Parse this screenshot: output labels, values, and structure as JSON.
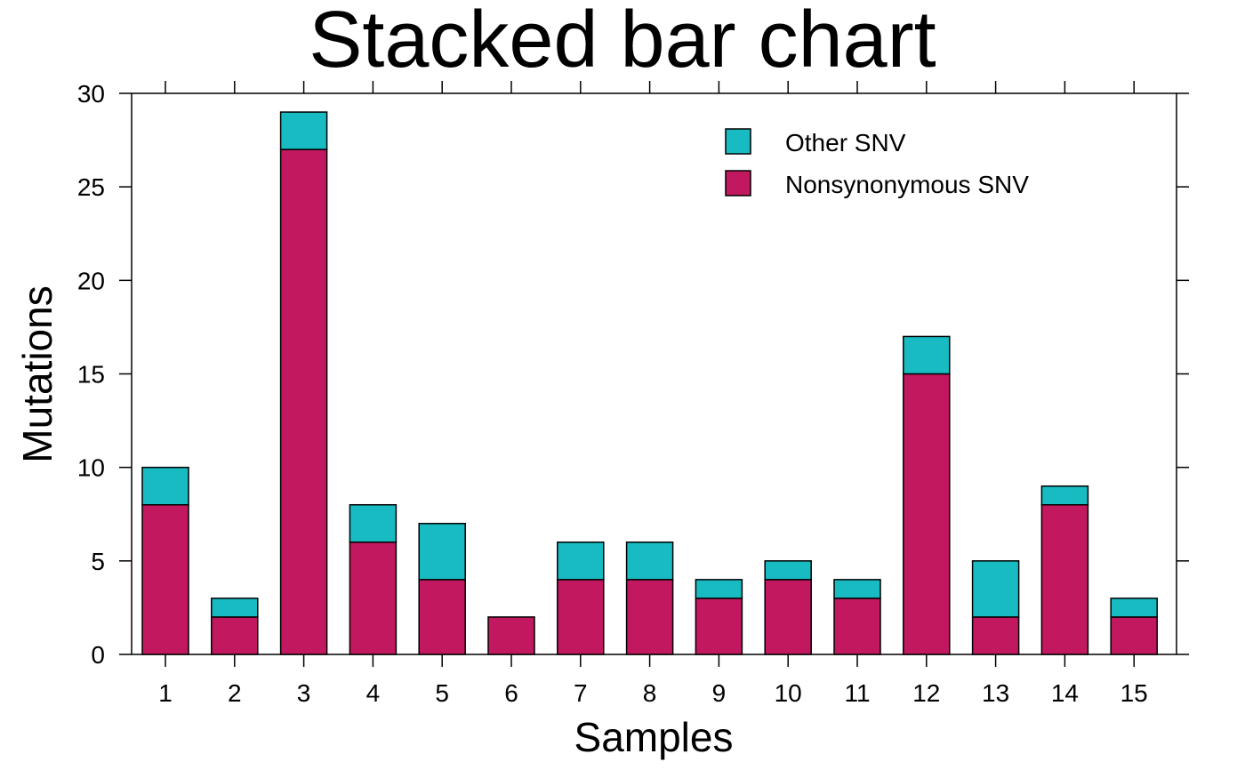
{
  "chart_data": {
    "type": "bar",
    "stacked": true,
    "title": "Stacked bar chart",
    "xlabel": "Samples",
    "ylabel": "Mutations",
    "ylim": [
      0,
      30
    ],
    "yticks": [
      0,
      5,
      10,
      15,
      20,
      25,
      30
    ],
    "categories": [
      "1",
      "2",
      "3",
      "4",
      "5",
      "6",
      "7",
      "8",
      "9",
      "10",
      "11",
      "12",
      "13",
      "14",
      "15"
    ],
    "series": [
      {
        "name": "Nonsynonymous SNV",
        "color": "#C2185F",
        "values": [
          8,
          2,
          27,
          6,
          4,
          2,
          4,
          4,
          3,
          4,
          3,
          15,
          2,
          8,
          2
        ]
      },
      {
        "name": "Other SNV",
        "color": "#19BBC3",
        "values": [
          2,
          1,
          2,
          2,
          3,
          0,
          2,
          2,
          1,
          1,
          1,
          2,
          3,
          1,
          1
        ]
      }
    ],
    "legend": {
      "position": "top-right",
      "order": [
        "Other SNV",
        "Nonsynonymous SNV"
      ]
    },
    "grid": false
  }
}
